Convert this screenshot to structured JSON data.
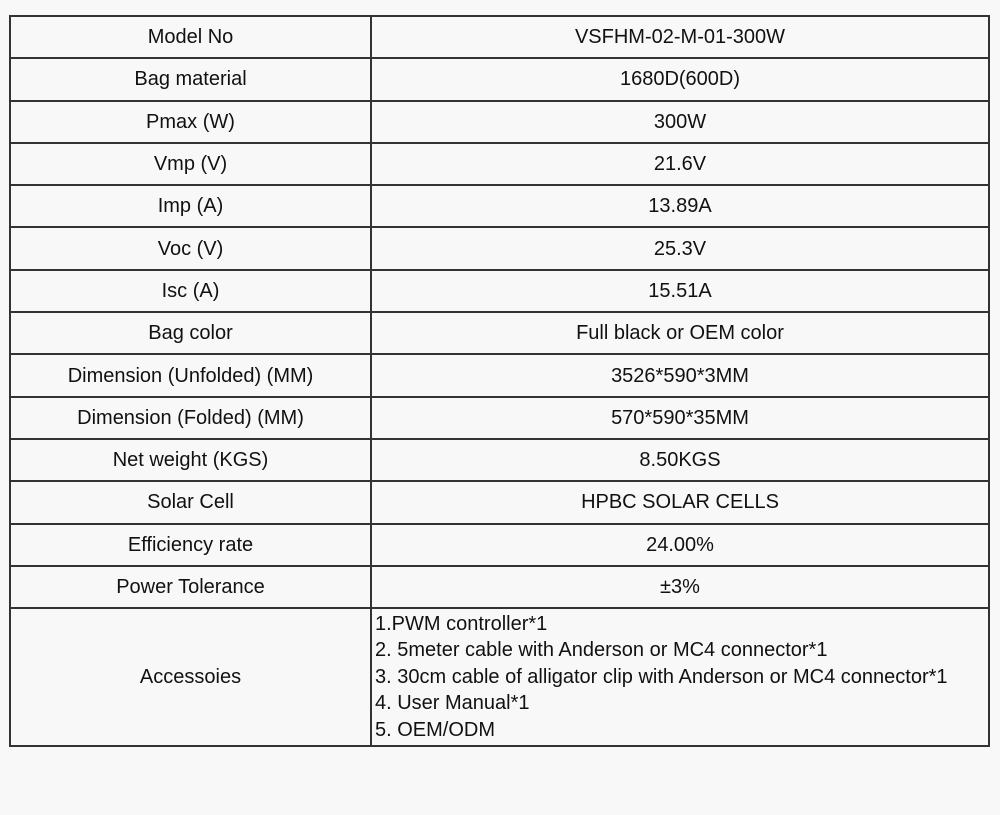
{
  "specs": [
    {
      "label": "Model No",
      "value": "VSFHM-02-M-01-300W"
    },
    {
      "label": "Bag material",
      "value": "1680D(600D)"
    },
    {
      "label": "Pmax (W)",
      "value": "300W"
    },
    {
      "label": "Vmp (V)",
      "value": "21.6V"
    },
    {
      "label": "Imp (A)",
      "value": "13.89A"
    },
    {
      "label": "Voc (V)",
      "value": "25.3V"
    },
    {
      "label": "Isc (A)",
      "value": "15.51A"
    },
    {
      "label": "Bag color",
      "value": "Full black or OEM color"
    },
    {
      "label": "Dimension (Unfolded) (MM)",
      "value": "3526*590*3MM"
    },
    {
      "label": "Dimension (Folded) (MM)",
      "value": "570*590*35MM"
    },
    {
      "label": "Net weight (KGS)",
      "value": "8.50KGS"
    },
    {
      "label": "Solar Cell",
      "value": "HPBC SOLAR CELLS"
    },
    {
      "label": "Efficiency rate",
      "value": "24.00%"
    },
    {
      "label": "Power Tolerance",
      "value": "±3%"
    }
  ],
  "accessories": {
    "label": "Accessoies",
    "items": [
      "1.PWM controller*1",
      "2. 5meter cable with Anderson or MC4 connector*1",
      "3. 30cm cable of alligator clip with Anderson or MC4 connector*1",
      "4. User Manual*1",
      "5. OEM/ODM"
    ]
  }
}
